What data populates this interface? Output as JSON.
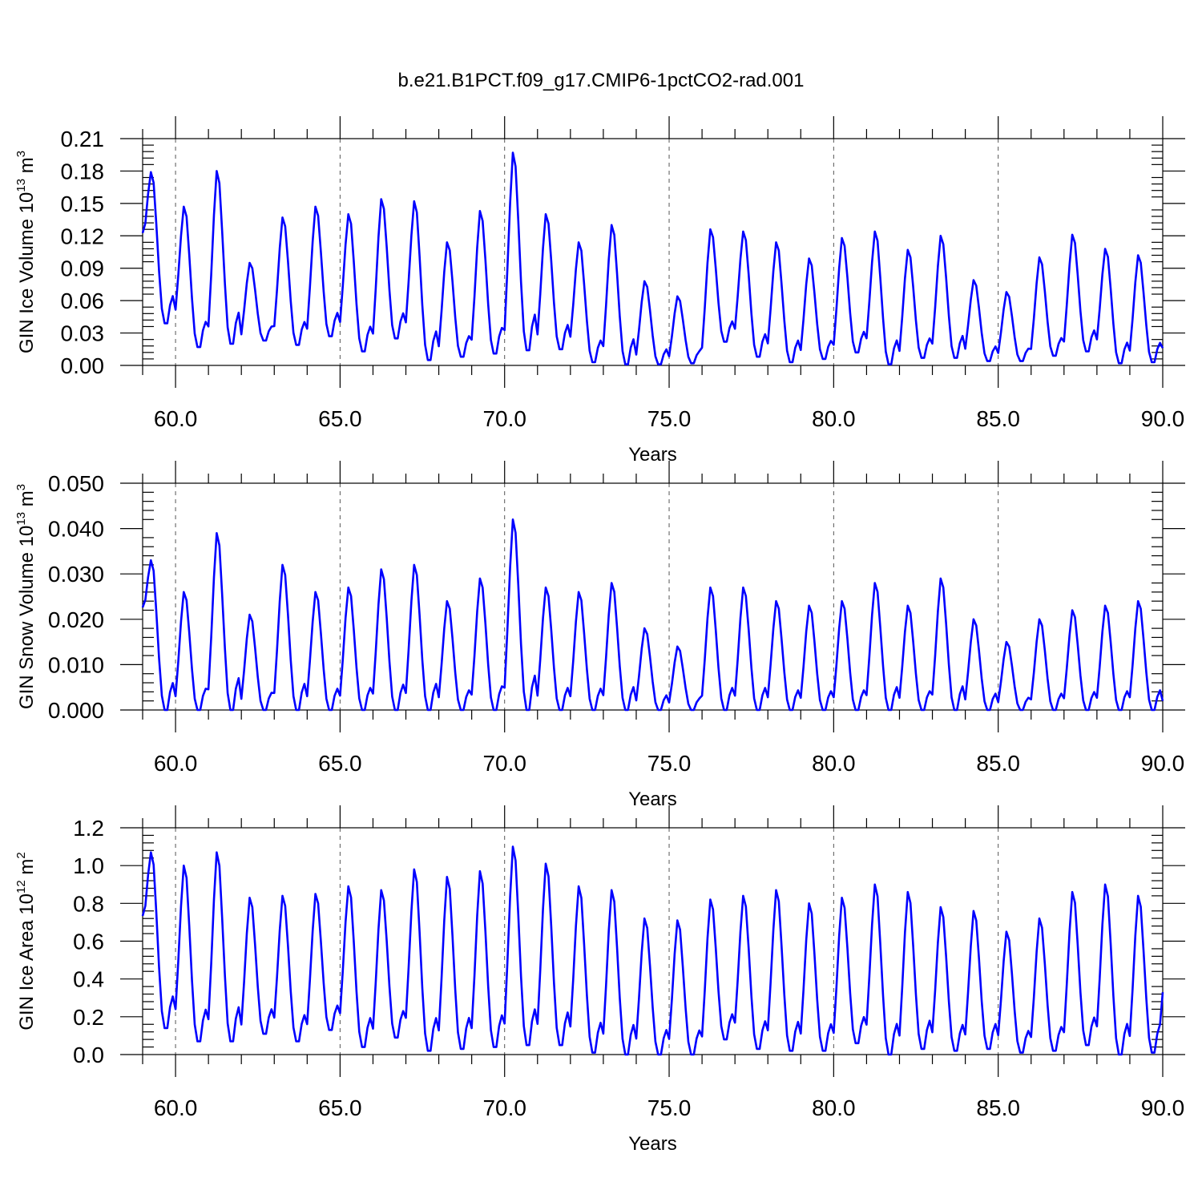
{
  "title": "b.e21.B1PCT.f09_g17.CMIP6-1pctCO2-rad.001",
  "colors": {
    "line": "#0000ff",
    "axis": "#000000"
  },
  "chart_data": [
    {
      "type": "line",
      "xlabel": "Years",
      "ylabel": "GIN Ice Volume 10¹³ m³",
      "ylabel_base": "GIN Ice Volume 10",
      "ylabel_exp": "13",
      "ylabel_unit": "m",
      "ylabel_unit_exp": "3",
      "xlim": [
        59.0,
        90.0
      ],
      "ylim": [
        0.0,
        0.21
      ],
      "xticks": [
        60.0,
        65.0,
        70.0,
        75.0,
        80.0,
        85.0,
        90.0
      ],
      "xtick_labels": [
        "60.0",
        "65.0",
        "70.0",
        "75.0",
        "80.0",
        "85.0",
        "90.0"
      ],
      "yticks": [
        0,
        0.03,
        0.06,
        0.09,
        0.12,
        0.15,
        0.18,
        0.21
      ],
      "ytick_labels": [
        "0.00",
        "0.03",
        "0.06",
        "0.09",
        "0.12",
        "0.15",
        "0.18",
        "0.21"
      ],
      "grid_x": "dashed at major ticks",
      "peaks": [
        0.179,
        0.147,
        0.18,
        0.095,
        0.137,
        0.147,
        0.14,
        0.154,
        0.152,
        0.114,
        0.143,
        0.197,
        0.14,
        0.114,
        0.13,
        0.078,
        0.064,
        0.126,
        0.124,
        0.114,
        0.099,
        0.118,
        0.124,
        0.107,
        0.12,
        0.079,
        0.068,
        0.1,
        0.121,
        0.108,
        0.102
      ],
      "troughs": [
        0.039,
        0.017,
        0.02,
        0.023,
        0.019,
        0.027,
        0.013,
        0.025,
        0.005,
        0.008,
        0.011,
        0.014,
        0.015,
        0.003,
        0.001,
        0.001,
        0.002,
        0.022,
        0.008,
        0.003,
        0.006,
        0.012,
        0.001,
        0.007,
        0.007,
        0.004,
        0.004,
        0.009,
        0.013,
        0.002,
        0.003
      ],
      "end_value": 0.016
    },
    {
      "type": "line",
      "xlabel": "Years",
      "ylabel": "GIN Snow Volume 10¹³ m³",
      "ylabel_base": "GIN Snow Volume 10",
      "ylabel_exp": "13",
      "ylabel_unit": "m",
      "ylabel_unit_exp": "3",
      "xlim": [
        59.0,
        90.0
      ],
      "ylim": [
        0.0,
        0.05
      ],
      "xticks": [
        60.0,
        65.0,
        70.0,
        75.0,
        80.0,
        85.0,
        90.0
      ],
      "xtick_labels": [
        "60.0",
        "65.0",
        "70.0",
        "75.0",
        "80.0",
        "85.0",
        "90.0"
      ],
      "yticks": [
        0,
        0.01,
        0.02,
        0.03,
        0.04,
        0.05
      ],
      "ytick_labels": [
        "0.000",
        "0.010",
        "0.020",
        "0.030",
        "0.040",
        "0.050"
      ],
      "grid_x": "dashed at major ticks",
      "peaks": [
        0.033,
        0.026,
        0.039,
        0.021,
        0.032,
        0.026,
        0.027,
        0.031,
        0.032,
        0.024,
        0.029,
        0.042,
        0.027,
        0.026,
        0.028,
        0.018,
        0.014,
        0.027,
        0.027,
        0.024,
        0.023,
        0.024,
        0.028,
        0.023,
        0.029,
        0.02,
        0.015,
        0.02,
        0.022,
        0.023,
        0.024
      ],
      "troughs": [
        0.0,
        0.0,
        0.0,
        0.0,
        0.0,
        0.0,
        0.0,
        0.0,
        0.0,
        0.0,
        0.0,
        0.0,
        0.0,
        0.0,
        0.0,
        0.0,
        0.0,
        0.0,
        0.0,
        0.0,
        0.0,
        0.0,
        0.0,
        0.0,
        0.0,
        0.0,
        0.0,
        0.0,
        0.0,
        0.0,
        0.0
      ],
      "end_value": 0.002
    },
    {
      "type": "line",
      "xlabel": "Years",
      "ylabel": "GIN Ice Area 10¹² m²",
      "ylabel_base": "GIN Ice Area 10",
      "ylabel_exp": "12",
      "ylabel_unit": "m",
      "ylabel_unit_exp": "2",
      "xlim": [
        59.0,
        90.0
      ],
      "ylim": [
        0.0,
        1.2
      ],
      "xticks": [
        60.0,
        65.0,
        70.0,
        75.0,
        80.0,
        85.0,
        90.0
      ],
      "xtick_labels": [
        "60.0",
        "65.0",
        "70.0",
        "75.0",
        "80.0",
        "85.0",
        "90.0"
      ],
      "yticks": [
        0,
        0.2,
        0.4,
        0.6,
        0.8,
        1.0,
        1.2
      ],
      "ytick_labels": [
        "0.0",
        "0.2",
        "0.4",
        "0.6",
        "0.8",
        "1.0",
        "1.2"
      ],
      "grid_x": "dashed at major ticks",
      "peaks": [
        1.07,
        1.0,
        1.07,
        0.83,
        0.84,
        0.85,
        0.89,
        0.87,
        0.98,
        0.94,
        0.97,
        1.1,
        1.01,
        0.89,
        0.87,
        0.72,
        0.71,
        0.82,
        0.84,
        0.87,
        0.8,
        0.83,
        0.9,
        0.86,
        0.78,
        0.76,
        0.65,
        0.72,
        0.86,
        0.9,
        0.84
      ],
      "troughs": [
        0.14,
        0.07,
        0.07,
        0.11,
        0.07,
        0.13,
        0.04,
        0.09,
        0.02,
        0.03,
        0.04,
        0.05,
        0.05,
        0.01,
        0.0,
        0.0,
        0.0,
        0.08,
        0.03,
        0.02,
        0.02,
        0.06,
        0.0,
        0.03,
        0.02,
        0.03,
        0.01,
        0.02,
        0.05,
        0.0,
        0.01
      ],
      "end_value": 0.33
    }
  ]
}
